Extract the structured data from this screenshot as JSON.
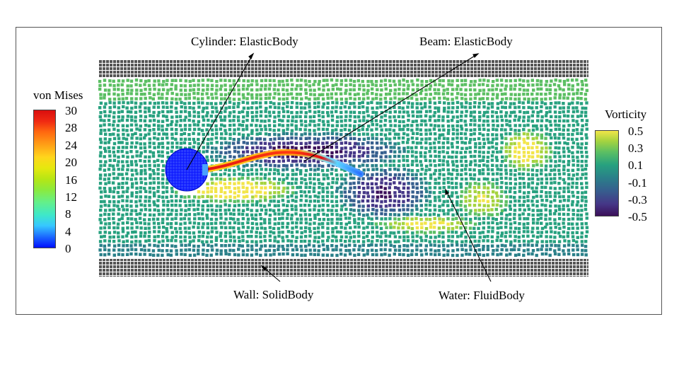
{
  "labels": {
    "cylinder": "Cylinder: ElasticBody",
    "beam": "Beam: ElasticBody",
    "wall": "Wall: SolidBody",
    "water": "Water: FluidBody"
  },
  "von_mises": {
    "title": "von Mises",
    "ticks": [
      "30",
      "28",
      "24",
      "20",
      "16",
      "12",
      "8",
      "4",
      "0"
    ]
  },
  "vorticity": {
    "title": "Vorticity",
    "ticks": [
      "0.5",
      "0.3",
      "0.1",
      "-0.1",
      "-0.3",
      "-0.5"
    ]
  },
  "colors": {
    "wall_particles": "#555555",
    "cylinder": "#0a14ff",
    "beam_high": "#e01414",
    "beam_low": "#3a8cff",
    "vort_pos": "#f2e549",
    "vort_neg": "#3b0f59"
  }
}
